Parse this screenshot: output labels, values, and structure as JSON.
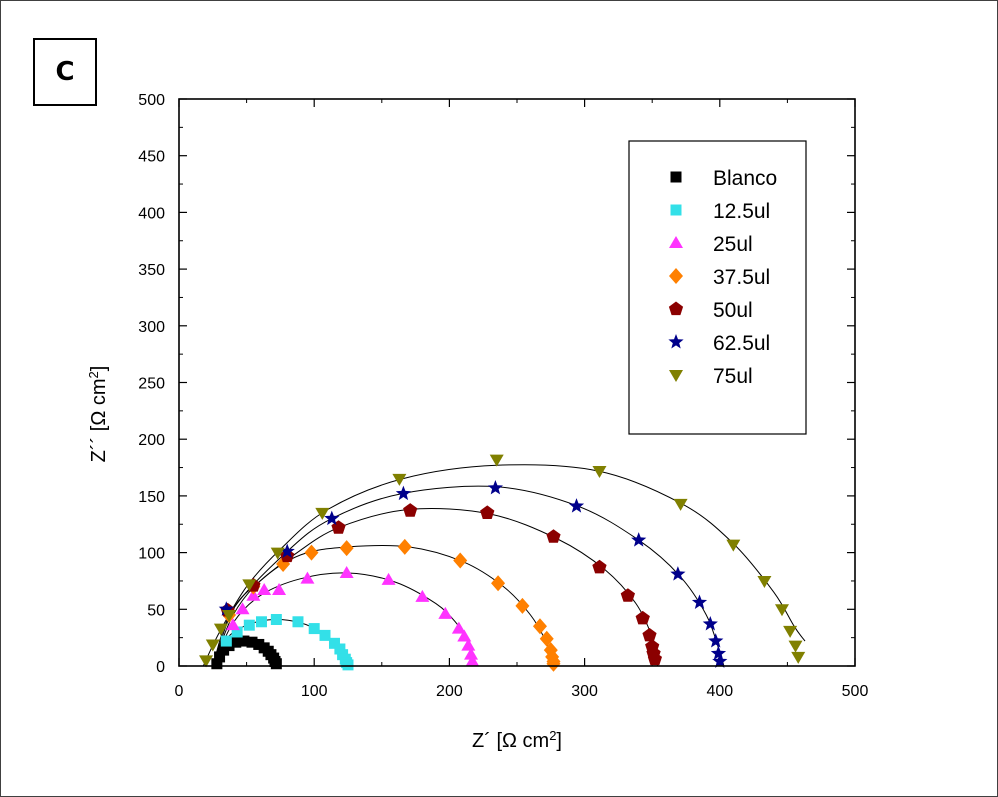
{
  "panel_label": "C",
  "chart_data": {
    "type": "scatter",
    "xlabel": "Z´ [Ω cm2]",
    "ylabel": "Z´´ [Ω cm2]",
    "xlim": [
      0,
      500
    ],
    "ylim": [
      0,
      500
    ],
    "x_ticks": [
      0,
      100,
      200,
      300,
      400,
      500
    ],
    "y_ticks": [
      0,
      50,
      100,
      150,
      200,
      250,
      300,
      350,
      400,
      450,
      500
    ],
    "grid": false,
    "legend_position": "top-right",
    "fit_lines": true,
    "series": [
      {
        "name": "Blanco",
        "marker": "square",
        "color": "#000000",
        "x": [
          28,
          30,
          33,
          37,
          42,
          48,
          54,
          59,
          63,
          66,
          68,
          70,
          71,
          72
        ],
        "y": [
          2,
          8,
          14,
          18,
          21,
          22,
          21,
          19,
          16,
          13,
          10,
          7,
          4,
          2
        ],
        "fit": {
          "x": [
            25,
            28,
            35,
            45,
            55,
            63,
            68,
            71,
            73
          ],
          "y": [
            0,
            10,
            18,
            22,
            21,
            16,
            11,
            5,
            0
          ]
        }
      },
      {
        "name": "12.5ul",
        "marker": "square",
        "color": "#33e0e8",
        "x": [
          35,
          43,
          52,
          61,
          72,
          88,
          100,
          108,
          115,
          119,
          121,
          123,
          124,
          125
        ],
        "y": [
          22,
          30,
          36,
          39,
          41,
          39,
          33,
          27,
          20,
          15,
          10,
          6,
          3,
          1
        ],
        "fit": {
          "x": [
            25,
            35,
            50,
            70,
            90,
            105,
            115,
            121,
            125
          ],
          "y": [
            0,
            24,
            36,
            41,
            38,
            30,
            20,
            10,
            0
          ]
        }
      },
      {
        "name": "25ul",
        "marker": "triangle-up",
        "color": "#ff33ff",
        "x": [
          40,
          47,
          55,
          63,
          74,
          95,
          124,
          155,
          180,
          197,
          207,
          211,
          214,
          216,
          217
        ],
        "y": [
          36,
          50,
          62,
          67,
          67,
          77,
          82,
          76,
          61,
          46,
          33,
          26,
          18,
          10,
          4
        ],
        "fit": {
          "x": [
            25,
            40,
            60,
            90,
            125,
            160,
            190,
            205,
            212,
            216,
            218
          ],
          "y": [
            0,
            38,
            62,
            77,
            82,
            74,
            55,
            38,
            25,
            12,
            0
          ]
        }
      },
      {
        "name": "37.5ul",
        "marker": "diamond",
        "color": "#ff8000",
        "x": [
          37,
          55,
          77,
          98,
          124,
          167,
          208,
          236,
          254,
          267,
          272,
          275,
          276,
          277,
          277
        ],
        "y": [
          45,
          70,
          90,
          100,
          104,
          105,
          93,
          73,
          53,
          35,
          24,
          14,
          8,
          4,
          2
        ],
        "fit": {
          "x": [
            25,
            40,
            60,
            90,
            125,
            170,
            210,
            240,
            260,
            272,
            277
          ],
          "y": [
            0,
            45,
            75,
            98,
            105,
            105,
            92,
            70,
            45,
            20,
            0
          ]
        }
      },
      {
        "name": "50ul",
        "marker": "pentagon",
        "color": "#8b0000",
        "x": [
          36,
          55,
          80,
          118,
          171,
          228,
          277,
          311,
          332,
          343,
          348,
          350,
          351,
          352
        ],
        "y": [
          49,
          71,
          97,
          122,
          137,
          135,
          114,
          87,
          62,
          42,
          27,
          17,
          11,
          6
        ],
        "fit": {
          "x": [
            25,
            40,
            60,
            85,
            118,
            170,
            230,
            280,
            315,
            338,
            350,
            354
          ],
          "y": [
            0,
            50,
            75,
            98,
            122,
            138,
            134,
            112,
            85,
            55,
            25,
            0
          ]
        }
      },
      {
        "name": "62.5ul",
        "marker": "star",
        "color": "#00008b",
        "x": [
          35,
          80,
          113,
          166,
          234,
          294,
          340,
          369,
          385,
          393,
          397,
          399,
          400
        ],
        "y": [
          50,
          101,
          130,
          152,
          157,
          141,
          111,
          81,
          56,
          37,
          22,
          11,
          4
        ],
        "fit": {
          "x": [
            25,
            40,
            80,
            113,
            165,
            235,
            295,
            340,
            370,
            390,
            400,
            403
          ],
          "y": [
            0,
            50,
            101,
            130,
            152,
            158,
            141,
            111,
            80,
            45,
            12,
            0
          ]
        }
      },
      {
        "name": "75ul",
        "marker": "triangle-down",
        "color": "#808000",
        "x": [
          20,
          25,
          31,
          37,
          52,
          73,
          106,
          163,
          235,
          311,
          371,
          410,
          433,
          446,
          452,
          456,
          458
        ],
        "y": [
          5,
          19,
          33,
          45,
          72,
          100,
          135,
          165,
          182,
          172,
          143,
          107,
          75,
          50,
          31,
          18,
          8
        ],
        "fit": {
          "x": [
            18,
            30,
            50,
            75,
            110,
            165,
            235,
            310,
            372,
            410,
            440,
            455,
            463
          ],
          "y": [
            0,
            30,
            70,
            103,
            138,
            165,
            177,
            172,
            143,
            108,
            65,
            35,
            22
          ]
        }
      }
    ]
  }
}
